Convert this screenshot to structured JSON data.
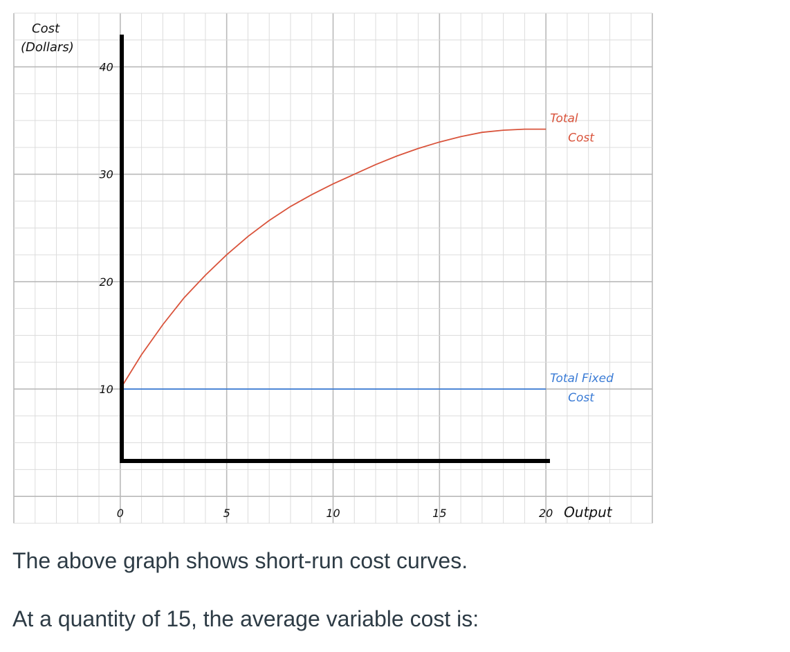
{
  "chart_data": {
    "type": "line",
    "title": "",
    "xlabel": "Output",
    "ylabel": [
      "Cost",
      "(Dollars)"
    ],
    "xlim": [
      -5,
      25
    ],
    "ylim": [
      -2.5,
      45
    ],
    "x_ticks": [
      {
        "value": 0,
        "label": "0"
      },
      {
        "value": 5,
        "label": "5"
      },
      {
        "value": 10,
        "label": "10"
      },
      {
        "value": 15,
        "label": "15"
      },
      {
        "value": 20,
        "label": "20"
      }
    ],
    "y_ticks": [
      {
        "value": 10,
        "label": "10"
      },
      {
        "value": 20,
        "label": "20"
      },
      {
        "value": 30,
        "label": "30"
      },
      {
        "value": 40,
        "label": "40"
      }
    ],
    "grid": true,
    "series": [
      {
        "name": "Total Cost",
        "label_lines": [
          "Total",
          "Cost"
        ],
        "color": "#d9533b",
        "points": [
          [
            0,
            10
          ],
          [
            1,
            13.2
          ],
          [
            2,
            16.0
          ],
          [
            3,
            18.5
          ],
          [
            4,
            20.6
          ],
          [
            5,
            22.5
          ],
          [
            6,
            24.2
          ],
          [
            7,
            25.7
          ],
          [
            8,
            27.0
          ],
          [
            9,
            28.1
          ],
          [
            10,
            29.1
          ],
          [
            11,
            30.0
          ],
          [
            12,
            30.9
          ],
          [
            13,
            31.7
          ],
          [
            14,
            32.4
          ],
          [
            15,
            33.0
          ],
          [
            16,
            33.5
          ],
          [
            17,
            33.9
          ],
          [
            18,
            34.1
          ],
          [
            19,
            34.2
          ],
          [
            20,
            34.2
          ]
        ]
      },
      {
        "name": "Total Fixed Cost",
        "label_lines": [
          "Total Fixed",
          "Cost"
        ],
        "color": "#3a7bd5",
        "points": [
          [
            0,
            10
          ],
          [
            20,
            10
          ]
        ]
      }
    ]
  },
  "text": {
    "caption_1": "The above graph shows short-run cost curves.",
    "caption_2": "At a quantity of 15, the average variable cost is:"
  }
}
